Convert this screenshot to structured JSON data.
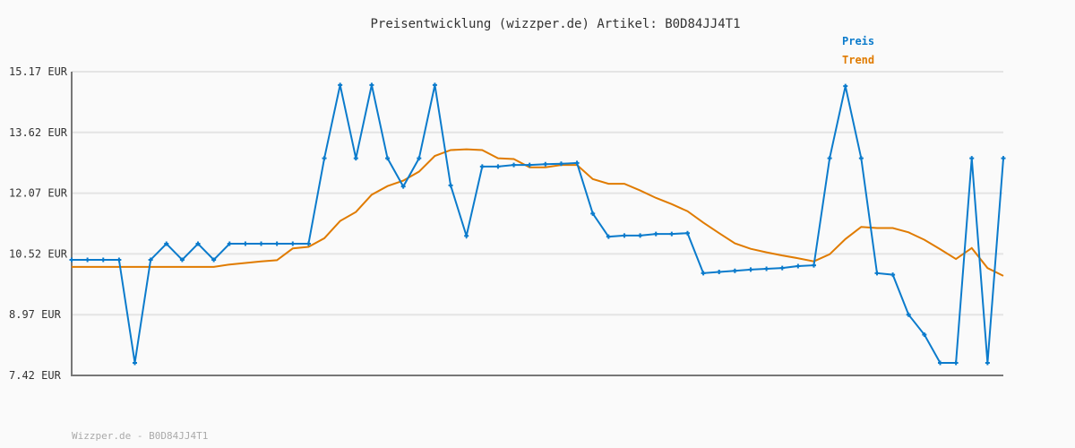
{
  "chart_data": {
    "type": "line",
    "title": "Preisentwicklung (wizzper.de) Artikel: B0D84JJ4T1",
    "footer": "Wizzper.de - B0D84JJ4T1",
    "ylim": [
      7.42,
      15.17
    ],
    "yticks": [
      "15.17 EUR",
      "13.62 EUR",
      "12.07 EUR",
      "10.52 EUR",
      "8.97 EUR",
      "7.42 EUR"
    ],
    "ytick_values": [
      15.17,
      13.62,
      12.07,
      10.52,
      8.97,
      7.42
    ],
    "grid": true,
    "legend_position": "top-right",
    "series": [
      {
        "name": "Preis",
        "color": "#0b7bcc",
        "markers": true,
        "values": [
          10.37,
          10.37,
          10.37,
          10.37,
          7.74,
          10.37,
          10.78,
          10.37,
          10.78,
          10.37,
          10.78,
          10.78,
          10.78,
          10.78,
          10.78,
          10.78,
          12.96,
          14.83,
          12.96,
          14.83,
          12.96,
          12.24,
          12.96,
          14.83,
          12.27,
          10.98,
          12.75,
          12.75,
          12.79,
          12.79,
          12.81,
          12.82,
          12.84,
          11.55,
          10.96,
          10.99,
          10.99,
          11.03,
          11.03,
          11.05,
          10.03,
          10.06,
          10.09,
          10.12,
          10.14,
          10.16,
          10.21,
          10.23,
          12.96,
          14.8,
          12.96,
          10.03,
          9.99,
          8.97,
          8.46,
          7.74,
          7.74,
          12.96,
          7.74,
          12.96
        ]
      },
      {
        "name": "Trend",
        "color": "#e07b00",
        "markers": false,
        "values": [
          10.19,
          10.19,
          10.19,
          10.19,
          10.19,
          10.19,
          10.19,
          10.19,
          10.19,
          10.19,
          10.25,
          10.29,
          10.33,
          10.36,
          10.66,
          10.7,
          10.92,
          11.36,
          11.59,
          12.03,
          12.25,
          12.39,
          12.62,
          13.02,
          13.17,
          13.19,
          13.17,
          12.96,
          12.94,
          12.73,
          12.73,
          12.79,
          12.79,
          12.43,
          12.31,
          12.31,
          12.14,
          11.95,
          11.79,
          11.61,
          11.32,
          11.05,
          10.79,
          10.65,
          10.56,
          10.48,
          10.41,
          10.33,
          10.51,
          10.9,
          11.21,
          11.18,
          11.18,
          11.07,
          10.88,
          10.64,
          10.39,
          10.67,
          10.16,
          9.96
        ]
      }
    ]
  }
}
